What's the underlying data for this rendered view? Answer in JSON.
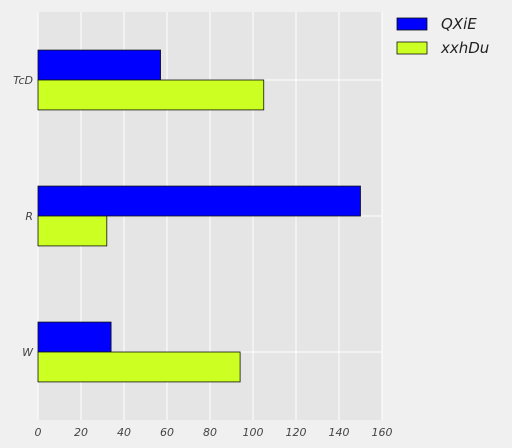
{
  "chart_data": {
    "type": "bar",
    "orientation": "horizontal",
    "categories": [
      "TcD",
      "R",
      "W"
    ],
    "series": [
      {
        "name": "QXiE",
        "values": [
          57,
          150,
          34
        ],
        "color": "#0000ff"
      },
      {
        "name": "xxhDu",
        "values": [
          105,
          32,
          94
        ],
        "color": "#ccff22"
      }
    ],
    "xlim": [
      0,
      160
    ],
    "xticks": [
      "0",
      "20",
      "40",
      "60",
      "80",
      "100",
      "120",
      "140",
      "160"
    ],
    "grid": true,
    "legend_position": "top-right",
    "plot_background": "#e5e5e5",
    "page_background": "#f0f0f0"
  }
}
